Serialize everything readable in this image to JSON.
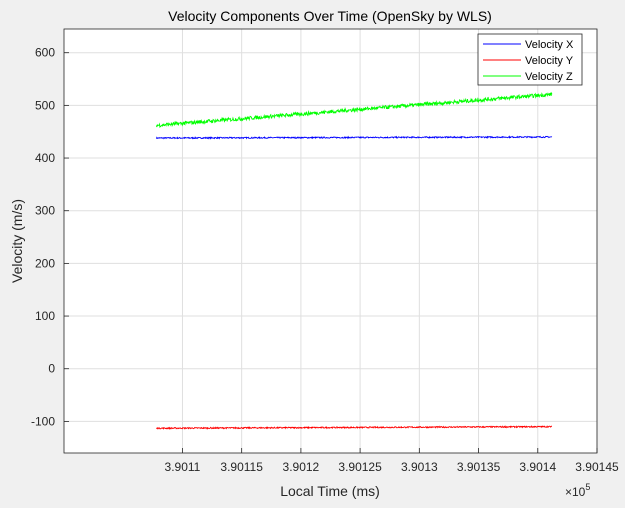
{
  "chart_data": {
    "type": "line",
    "title": "Velocity Components Over Time (OpenSky by WLS)",
    "xlabel": "Local Time (ms)",
    "ylabel": "Velocity (m/s)",
    "x_exponent_label": "×10",
    "x_exponent_power": "5",
    "xlim": [
      3.901,
      3.90145
    ],
    "ylim": [
      -160,
      645
    ],
    "x_ticks": [
      3.9011,
      3.90115,
      3.9012,
      3.90125,
      3.9013,
      3.90135,
      3.9014,
      3.90145
    ],
    "x_tick_labels": [
      "3.9011",
      "3.90115",
      "3.9012",
      "3.90125",
      "3.9013",
      "3.90135",
      "3.9014",
      "3.90145"
    ],
    "y_ticks": [
      -100,
      0,
      100,
      200,
      300,
      400,
      500,
      600
    ],
    "y_tick_labels": [
      "-100",
      "0",
      "100",
      "200",
      "300",
      "400",
      "500",
      "600"
    ],
    "grid": true,
    "legend_position": "top-right",
    "x_range": [
      3.901078,
      3.901412
    ],
    "series": [
      {
        "name": "Velocity X",
        "color": "#0000ff",
        "start": 438,
        "end": 440,
        "noise": 1.2
      },
      {
        "name": "Velocity Y",
        "color": "#ff0000",
        "start": -113,
        "end": -110,
        "noise": 1.2
      },
      {
        "name": "Velocity Z",
        "color": "#00ff00",
        "start": 462,
        "end": 521,
        "noise": 3.5
      }
    ]
  }
}
